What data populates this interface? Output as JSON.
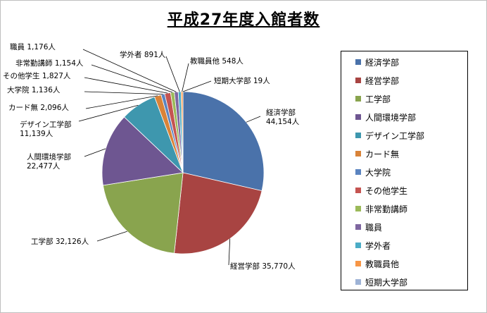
{
  "chart_data": {
    "type": "pie",
    "title": "平成27年度入館者数",
    "unit": "人",
    "legend_position": "right",
    "slices": [
      {
        "name": "経済学部",
        "value": 44154,
        "value_label": "44,154人",
        "color": "#4a72aa"
      },
      {
        "name": "経営学部",
        "value": 35770,
        "value_label": "35,770人",
        "color": "#a84442"
      },
      {
        "name": "工学部",
        "value": 32126,
        "value_label": "32,126人",
        "color": "#89a44e"
      },
      {
        "name": "人間環境学部",
        "value": 22477,
        "value_label": "22,477人",
        "color": "#6e5691"
      },
      {
        "name": "デザイン工学部",
        "value": 11139,
        "value_label": "11,139人",
        "color": "#3e97ae"
      },
      {
        "name": "カード無",
        "value": 2096,
        "value_label": "2,096人",
        "color": "#d98338"
      },
      {
        "name": "大学院",
        "value": 1136,
        "value_label": "1,136人",
        "color": "#5b84c0"
      },
      {
        "name": "その他学生",
        "value": 1827,
        "value_label": "1,827人",
        "color": "#c55451"
      },
      {
        "name": "非常勤講師",
        "value": 1154,
        "value_label": "1,154人",
        "color": "#9bba59"
      },
      {
        "name": "職員",
        "value": 1176,
        "value_label": "1,176人",
        "color": "#7e66a0"
      },
      {
        "name": "学外者",
        "value": 891,
        "value_label": "891人",
        "color": "#4bacc6"
      },
      {
        "name": "教職員他",
        "value": 548,
        "value_label": "548人",
        "color": "#f79646"
      },
      {
        "name": "短期大学部",
        "value": 19,
        "value_label": "19人",
        "color": "#9eb3d6"
      }
    ]
  }
}
